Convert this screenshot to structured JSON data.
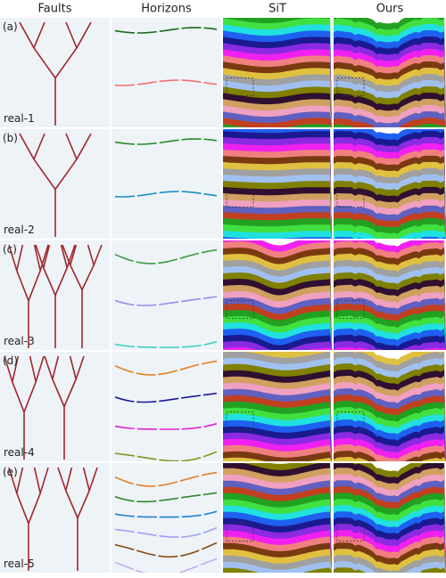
{
  "header": {
    "columns": [
      "Faults",
      "Horizons",
      "SiT",
      "Ours"
    ]
  },
  "rows": [
    {
      "letter": "(a)",
      "name": "real-1"
    },
    {
      "letter": "(b)",
      "name": "real-2"
    },
    {
      "letter": "(c)",
      "name": "real-3"
    },
    {
      "letter": "(d)",
      "name": "real-4"
    },
    {
      "letter": "(e)",
      "name": "real-5"
    }
  ]
}
